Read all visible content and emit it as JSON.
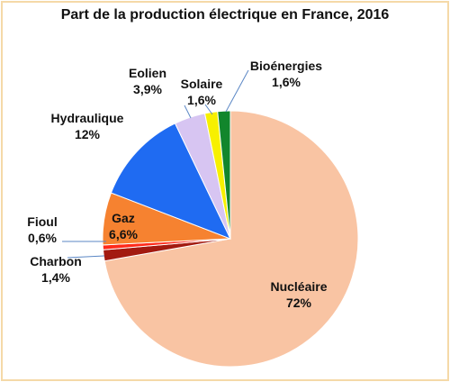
{
  "chart_data": {
    "type": "pie",
    "title": "Part de la production électrique en France, 2016",
    "slices": [
      {
        "name": "Nucléaire",
        "value": 72,
        "value_label": "72%",
        "color": "#f9c4a3"
      },
      {
        "name": "Charbon",
        "value": 1.4,
        "value_label": "1,4%",
        "color": "#a31a10"
      },
      {
        "name": "Fioul",
        "value": 0.6,
        "value_label": "0,6%",
        "color": "#ff2a1a"
      },
      {
        "name": "Gaz",
        "value": 6.6,
        "value_label": "6,6%",
        "color": "#f68230"
      },
      {
        "name": "Hydraulique",
        "value": 12,
        "value_label": "12%",
        "color": "#1f6bf2"
      },
      {
        "name": "Eolien",
        "value": 3.9,
        "value_label": "3,9%",
        "color": "#d7c5f2"
      },
      {
        "name": "Solaire",
        "value": 1.6,
        "value_label": "1,6%",
        "color": "#f7f000"
      },
      {
        "name": "Bioénergies",
        "value": 1.6,
        "value_label": "1,6%",
        "color": "#12862c"
      }
    ],
    "start_slice": "Nucléaire",
    "direction": "clockwise from top",
    "legend": "none (labels beside slices)"
  }
}
